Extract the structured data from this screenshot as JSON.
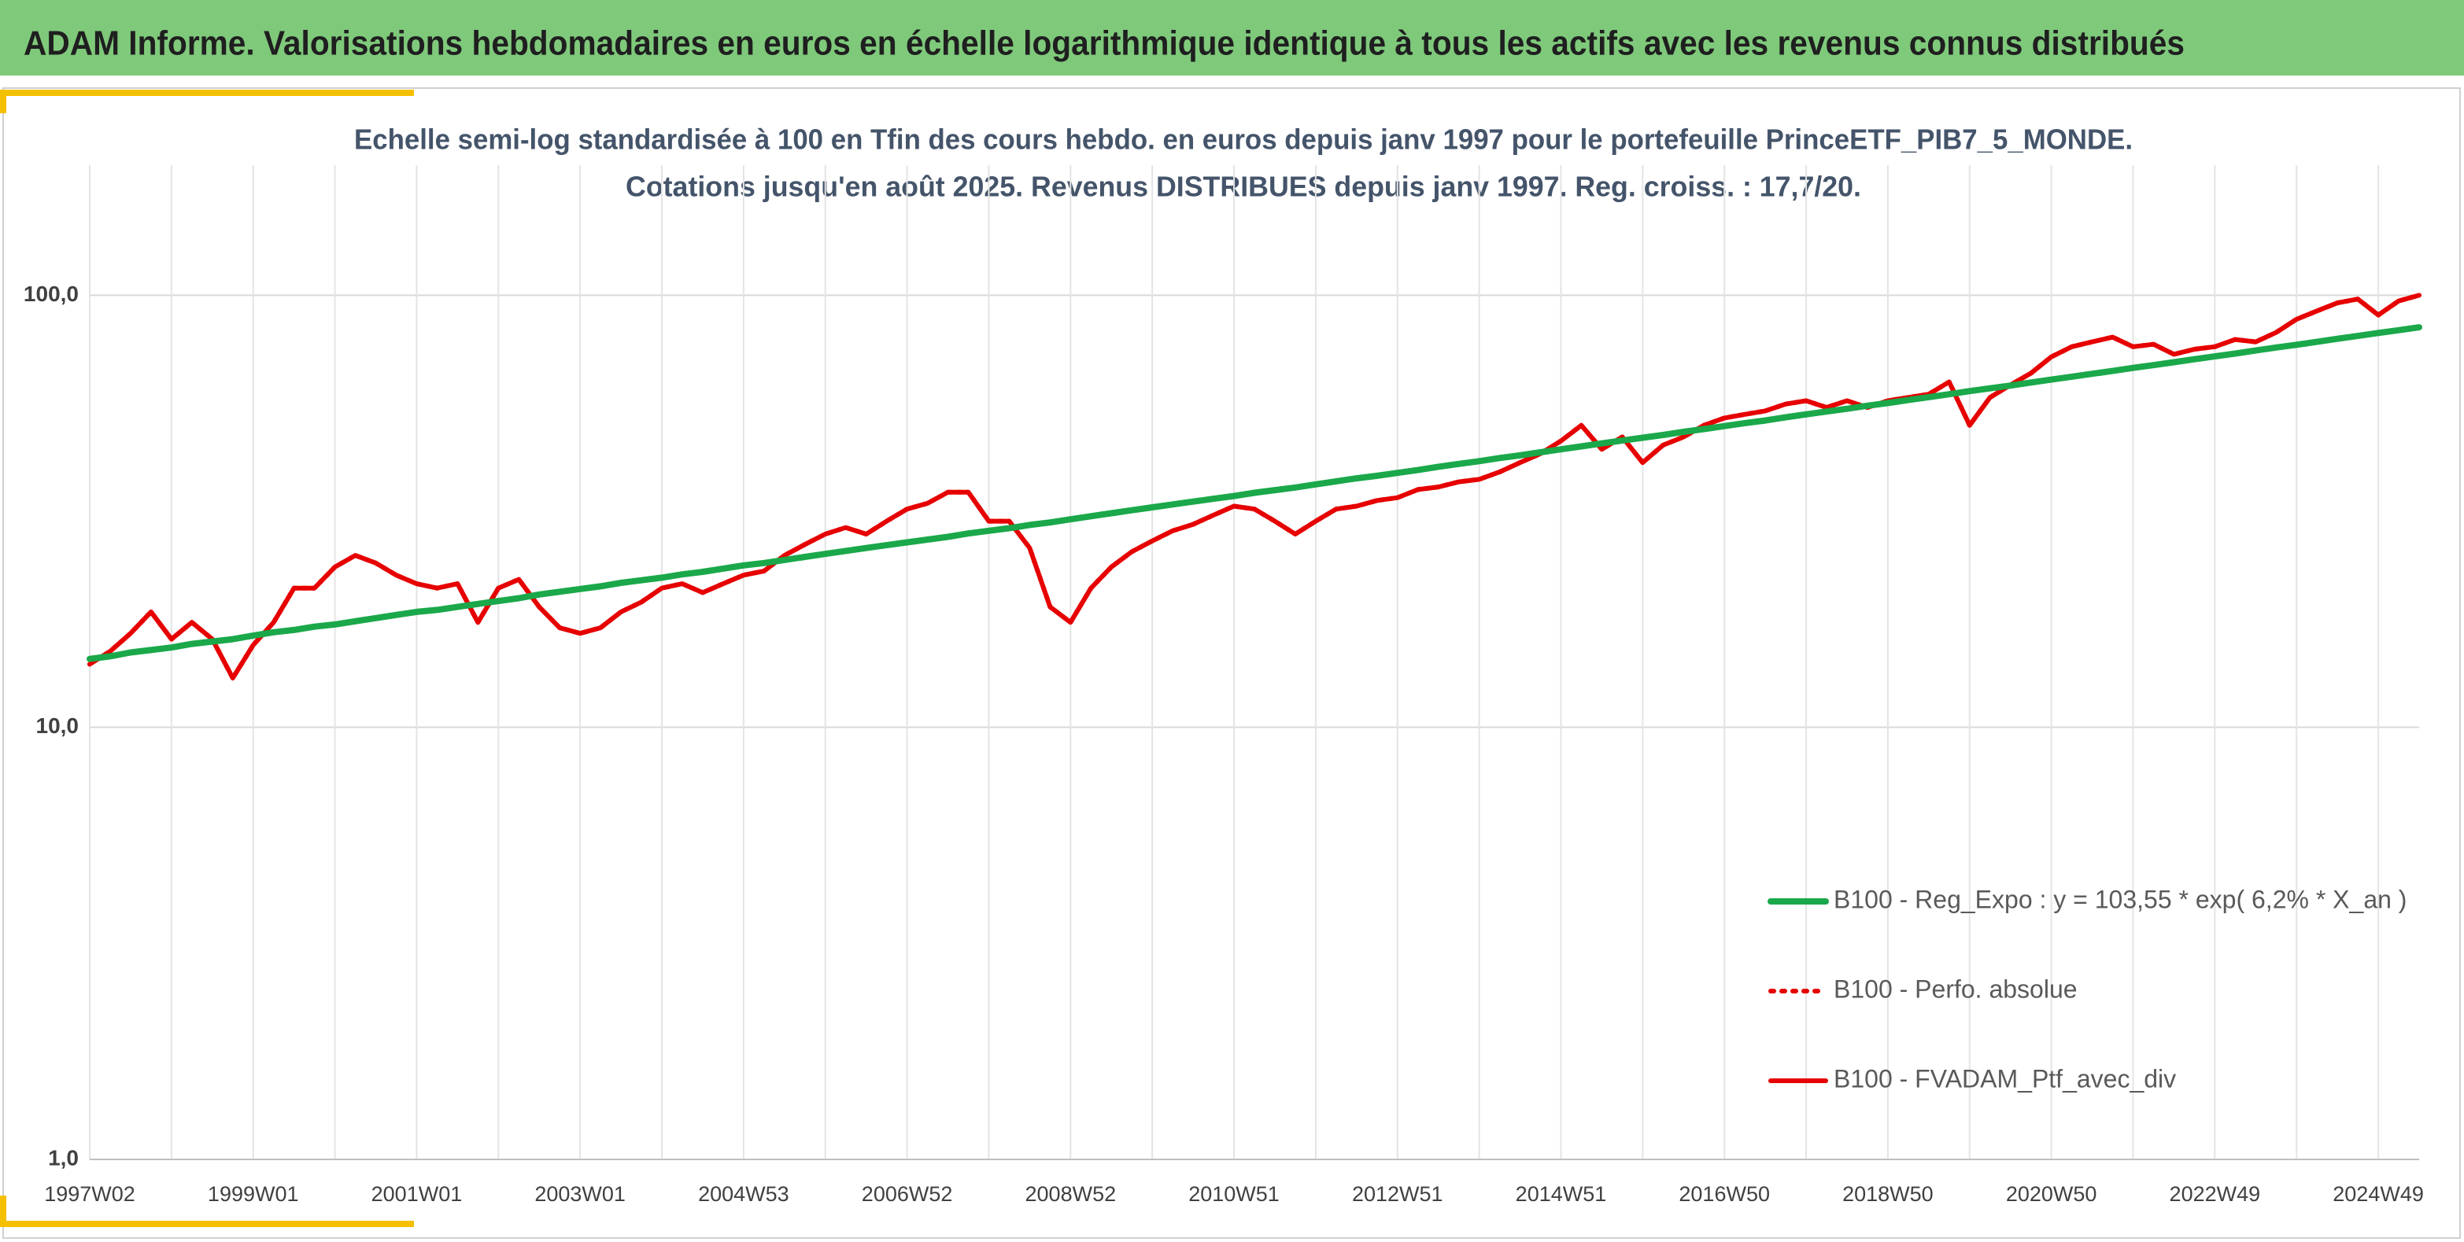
{
  "header": {
    "title": "ADAM Informe. Valorisations hebdomadaires en euros en échelle logarithmique identique à tous les actifs avec les revenus connus distribués"
  },
  "chart_data": {
    "type": "line",
    "title": "Echelle semi-log standardisée à 100 en Tfin des cours hebdo. en euros depuis janv 1997 pour le portefeuille PrinceETF_PIB7_5_MONDE.",
    "subtitle": "Cotations jusqu'en août 2025. Revenus DISTRIBUES depuis janv 1997. Reg. croiss. : 17,7/20.",
    "log_y": true,
    "grid": true,
    "legend": "right",
    "ylim": [
      1,
      200
    ],
    "yticks": [
      {
        "value": 1,
        "label": "1,0"
      },
      {
        "value": 10,
        "label": "10,0"
      },
      {
        "value": 100,
        "label": "100,0"
      }
    ],
    "categories": [
      "1997W02",
      null,
      null,
      null,
      null,
      null,
      null,
      null,
      "1999W01",
      null,
      null,
      null,
      null,
      null,
      null,
      null,
      "2001W01",
      null,
      null,
      null,
      null,
      null,
      null,
      null,
      "2003W01",
      null,
      null,
      null,
      null,
      null,
      null,
      null,
      "2004W53",
      null,
      null,
      null,
      null,
      null,
      null,
      null,
      "2006W52",
      null,
      null,
      null,
      null,
      null,
      null,
      null,
      "2008W52",
      null,
      null,
      null,
      null,
      null,
      null,
      null,
      "2010W51",
      null,
      null,
      null,
      null,
      null,
      null,
      null,
      "2012W51",
      null,
      null,
      null,
      null,
      null,
      null,
      null,
      "2014W51",
      null,
      null,
      null,
      null,
      null,
      null,
      null,
      "2016W50",
      null,
      null,
      null,
      null,
      null,
      null,
      null,
      "2018W50",
      null,
      null,
      null,
      null,
      null,
      null,
      null,
      "2020W50",
      null,
      null,
      null,
      null,
      null,
      null,
      null,
      "2022W49",
      null,
      null,
      null,
      null,
      null,
      null,
      null,
      "2024W49",
      null,
      null
    ],
    "series": [
      {
        "name": "B100 - Reg_Expo : y = 103,55 * exp( 6,2% *  X_an )",
        "color": "#1aa84a",
        "style": "solid",
        "width": 8,
        "values": [
          14.4,
          14.6,
          14.9,
          15.1,
          15.3,
          15.6,
          15.8,
          16.0,
          16.3,
          16.6,
          16.8,
          17.1,
          17.3,
          17.6,
          17.9,
          18.2,
          18.5,
          18.7,
          19.0,
          19.3,
          19.6,
          19.9,
          20.3,
          20.6,
          20.9,
          21.2,
          21.6,
          21.9,
          22.2,
          22.6,
          22.9,
          23.3,
          23.7,
          24.0,
          24.4,
          24.8,
          25.2,
          25.6,
          26.0,
          26.4,
          26.8,
          27.2,
          27.6,
          28.1,
          28.5,
          28.9,
          29.4,
          29.8,
          30.3,
          30.8,
          31.3,
          31.8,
          32.3,
          32.8,
          33.3,
          33.8,
          34.3,
          34.9,
          35.4,
          35.9,
          36.5,
          37.1,
          37.7,
          38.2,
          38.8,
          39.4,
          40.1,
          40.7,
          41.3,
          42.0,
          42.6,
          43.3,
          44.0,
          44.7,
          45.4,
          46.1,
          46.8,
          47.5,
          48.3,
          49.0,
          49.8,
          50.6,
          51.3,
          52.2,
          53.0,
          53.8,
          54.6,
          55.5,
          56.3,
          57.2,
          58.1,
          59.0,
          60.0,
          60.9,
          61.8,
          62.8,
          63.8,
          64.8,
          65.8,
          66.8,
          67.9,
          68.9,
          70.0,
          71.1,
          72.2,
          73.3,
          74.5,
          75.7,
          76.8,
          78.0,
          79.3,
          80.5,
          81.8,
          83.0,
          84.3
        ]
      },
      {
        "name": "B100 - Perfo. absolue",
        "color": "#e60000",
        "style": "dotted",
        "width": 6,
        "values": [
          14,
          15,
          16.5,
          18.5,
          16,
          17.5,
          16,
          13,
          15.5,
          17.5,
          21,
          21,
          23.5,
          25,
          24,
          22.5,
          21.5,
          21,
          21.5,
          17.5,
          21,
          22,
          19,
          17,
          16.5,
          17,
          18.5,
          19.5,
          21,
          21.5,
          20.5,
          21.5,
          22.5,
          23,
          25,
          26.5,
          28,
          29,
          28,
          30,
          32,
          33,
          35,
          35,
          30,
          30,
          26,
          19,
          17.5,
          21,
          23.5,
          25.5,
          27,
          28.5,
          29.5,
          31,
          32.5,
          32,
          30,
          28,
          30,
          32,
          32.5,
          33.5,
          34,
          35.5,
          36,
          37,
          37.5,
          39,
          41,
          43,
          46,
          50,
          44,
          47,
          41,
          45,
          47,
          50,
          52,
          53,
          54,
          56,
          57,
          55,
          57,
          55,
          57,
          58,
          59,
          63,
          50,
          58,
          62,
          66,
          72,
          76,
          78,
          80,
          76,
          77,
          73,
          75,
          76,
          79,
          78,
          82,
          88,
          92,
          96,
          98,
          90,
          97,
          100
        ]
      },
      {
        "name": "B100 - FVADAM_Ptf_avec_div",
        "color": "#e60000",
        "style": "solid",
        "width": 6,
        "values": [
          14,
          15,
          16.5,
          18.5,
          16,
          17.5,
          16,
          13,
          15.5,
          17.5,
          21,
          21,
          23.5,
          25,
          24,
          22.5,
          21.5,
          21,
          21.5,
          17.5,
          21,
          22,
          19,
          17,
          16.5,
          17,
          18.5,
          19.5,
          21,
          21.5,
          20.5,
          21.5,
          22.5,
          23,
          25,
          26.5,
          28,
          29,
          28,
          30,
          32,
          33,
          35,
          35,
          30,
          30,
          26,
          19,
          17.5,
          21,
          23.5,
          25.5,
          27,
          28.5,
          29.5,
          31,
          32.5,
          32,
          30,
          28,
          30,
          32,
          32.5,
          33.5,
          34,
          35.5,
          36,
          37,
          37.5,
          39,
          41,
          43,
          46,
          50,
          44,
          47,
          41,
          45,
          47,
          50,
          52,
          53,
          54,
          56,
          57,
          55,
          57,
          55,
          57,
          58,
          59,
          63,
          50,
          58,
          62,
          66,
          72,
          76,
          78,
          80,
          76,
          77,
          73,
          75,
          76,
          79,
          78,
          82,
          88,
          92,
          96,
          98,
          90,
          97,
          100
        ]
      }
    ]
  }
}
